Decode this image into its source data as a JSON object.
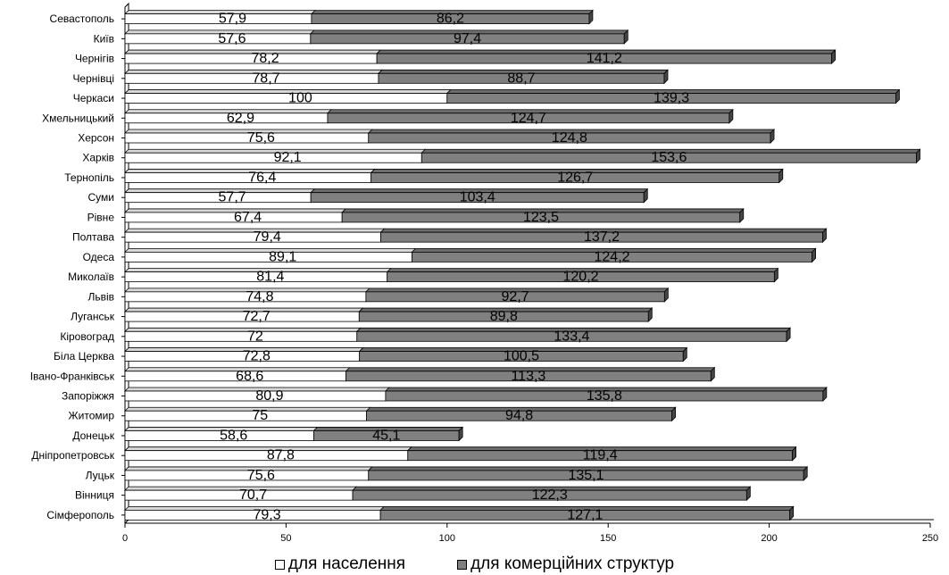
{
  "chart_data": {
    "type": "bar",
    "orientation": "horizontal",
    "stacked": true,
    "categories": [
      "Севастополь",
      "Київ",
      "Чернігів",
      "Чернівці",
      "Черкаси",
      "Хмельницький",
      "Херсон",
      "Харків",
      "Тернопіль",
      "Суми",
      "Рівне",
      "Полтава",
      "Одеса",
      "Миколаїв",
      "Львів",
      "Луганськ",
      "Кіровоград",
      "Біла Церква",
      "Івано-Франківськ",
      "Запоріжжя",
      "Житомир",
      "Донецьк",
      "Дніпропетровськ",
      "Луцьк",
      "Вінниця",
      "Сімферополь"
    ],
    "series": [
      {
        "name": "для населення",
        "color": "#ffffff",
        "values": [
          57.9,
          57.6,
          78.2,
          78.7,
          100,
          62.9,
          75.6,
          92.1,
          76.4,
          57.7,
          67.4,
          79.4,
          89.1,
          81.4,
          74.8,
          72.7,
          72,
          72.8,
          68.6,
          80.9,
          75,
          58.6,
          87.8,
          75.6,
          70.7,
          79.3
        ],
        "labels": [
          "57,9",
          "57,6",
          "78,2",
          "78,7",
          "100",
          "62,9",
          "75,6",
          "92,1",
          "76,4",
          "57,7",
          "67,4",
          "79,4",
          "89,1",
          "81,4",
          "74,8",
          "72,7",
          "72",
          "72,8",
          "68,6",
          "80,9",
          "75",
          "58,6",
          "87,8",
          "75,6",
          "70,7",
          "79,3"
        ]
      },
      {
        "name": "для комерційних структур",
        "color": "#808080",
        "values": [
          86.2,
          97.4,
          141.2,
          88.7,
          139.3,
          124.7,
          124.8,
          153.6,
          126.7,
          103.4,
          123.5,
          137.2,
          124.2,
          120.2,
          92.7,
          89.8,
          133.4,
          100.5,
          113.3,
          135.8,
          94.8,
          45.1,
          119.4,
          135.1,
          122.3,
          127.1
        ],
        "labels": [
          "86,2",
          "97,4",
          "141,2",
          "88,7",
          "139,3",
          "124,7",
          "124,8",
          "153,6",
          "126,7",
          "103,4",
          "123,5",
          "137,2",
          "124,2",
          "120,2",
          "92,7",
          "89,8",
          "133,4",
          "100,5",
          "113,3",
          "135,8",
          "94,8",
          "45,1",
          "119,4",
          "135,1",
          "122,3",
          "127,1"
        ]
      }
    ],
    "xlim": [
      0,
      250
    ],
    "xticks": [
      "0",
      "50",
      "100",
      "150",
      "200",
      "250"
    ],
    "grid": false,
    "legend_position": "bottom",
    "style": "3d"
  },
  "legend": {
    "series1_label": "для населення",
    "series2_label": "для комерційних структур"
  }
}
